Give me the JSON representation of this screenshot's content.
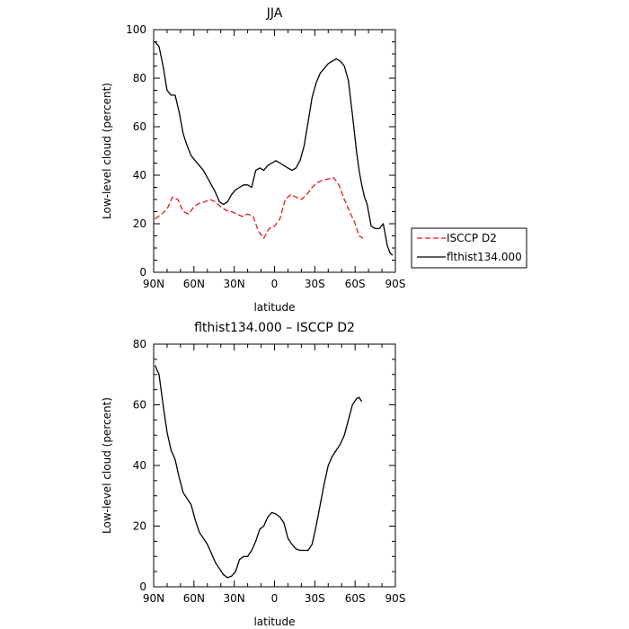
{
  "chart_data": [
    {
      "type": "line",
      "title": "JJA",
      "xlabel": "latitude",
      "ylabel": "Low-level cloud (percent)",
      "xlim": [
        90,
        -90
      ],
      "ylim": [
        0,
        100
      ],
      "x_ticks": [
        90,
        60,
        30,
        0,
        -30,
        -60,
        -90
      ],
      "x_tick_labels": [
        "90N",
        "60N",
        "30N",
        "0",
        "30S",
        "60S",
        "90S"
      ],
      "y_ticks": [
        0,
        20,
        40,
        60,
        80,
        100
      ],
      "y_tick_labels": [
        "0",
        "20",
        "40",
        "60",
        "80",
        "100"
      ],
      "grid": false,
      "legend_position": "right, outside plot",
      "series": [
        {
          "name": "ISCCP D2",
          "color": "#e8141b",
          "dash": "dashed",
          "x": [
            89,
            84,
            80,
            76,
            72,
            68,
            64,
            60,
            56,
            52,
            48,
            44,
            40,
            36,
            32,
            28,
            24,
            20,
            16,
            12,
            8,
            4,
            0,
            -4,
            -8,
            -12,
            -16,
            -20,
            -24,
            -28,
            -32,
            -36,
            -40,
            -44,
            -48,
            -52,
            -56,
            -60,
            -63,
            -66
          ],
          "values": [
            22,
            24,
            26,
            31,
            30,
            25,
            24,
            27,
            28.5,
            29,
            30,
            29,
            27,
            25.5,
            25,
            24,
            23,
            24,
            23,
            17,
            14,
            18,
            19,
            22,
            30,
            32,
            31,
            30,
            32,
            35,
            37,
            38,
            38.5,
            39,
            36,
            30,
            25,
            20,
            15,
            14
          ]
        },
        {
          "name": "flthist134.000",
          "color": "#000000",
          "dash": "solid",
          "x": [
            89,
            86,
            83,
            80,
            77,
            74,
            71,
            68,
            65,
            62,
            59,
            56,
            53,
            50,
            47,
            44,
            41,
            38,
            35,
            32,
            29,
            26,
            23,
            20,
            17,
            14,
            11,
            8,
            5,
            2,
            -1,
            -4,
            -7,
            -10,
            -13,
            -16,
            -19,
            -22,
            -25,
            -28,
            -31,
            -34,
            -37,
            -40,
            -43,
            -46,
            -49,
            -52,
            -55,
            -58,
            -61,
            -63,
            -65,
            -67,
            -69,
            -72,
            -75,
            -78,
            -81,
            -84,
            -86,
            -88
          ],
          "values": [
            95,
            93,
            85,
            75,
            73,
            73,
            66,
            57,
            52,
            48,
            46,
            44,
            42,
            39,
            36,
            33,
            29,
            28,
            29,
            32,
            34,
            35,
            36,
            36,
            35,
            42,
            43,
            42,
            44,
            45,
            46,
            45,
            44,
            43,
            42,
            43,
            46,
            52,
            62,
            72,
            78,
            82,
            84,
            86,
            87,
            88,
            87,
            85,
            79,
            65,
            50,
            42,
            36,
            31,
            28,
            19,
            18,
            18,
            20,
            11,
            8,
            7
          ]
        }
      ]
    },
    {
      "type": "line",
      "title": "flthist134.000 – ISCCP D2",
      "xlabel": "latitude",
      "ylabel": "Low-level cloud (percent)",
      "xlim": [
        90,
        -90
      ],
      "ylim": [
        0,
        80
      ],
      "x_ticks": [
        90,
        60,
        30,
        0,
        -30,
        -60,
        -90
      ],
      "x_tick_labels": [
        "90N",
        "60N",
        "30N",
        "0",
        "30S",
        "60S",
        "90S"
      ],
      "y_ticks": [
        0,
        20,
        40,
        60,
        80
      ],
      "y_tick_labels": [
        "0",
        "20",
        "40",
        "60",
        "80"
      ],
      "grid": false,
      "series": [
        {
          "color": "#000000",
          "dash": "solid",
          "x": [
            89,
            86,
            83,
            80,
            77,
            74,
            71,
            68,
            65,
            62,
            59,
            56,
            53,
            50,
            47,
            44,
            41,
            38,
            35,
            32,
            29,
            26,
            23,
            20,
            17,
            14,
            11,
            8,
            5,
            2,
            -1,
            -4,
            -7,
            -10,
            -13,
            -16,
            -19,
            -22,
            -25,
            -28,
            -31,
            -34,
            -37,
            -40,
            -43,
            -46,
            -49,
            -52,
            -55,
            -58,
            -61,
            -63,
            -65
          ],
          "values": [
            73,
            70,
            60,
            51,
            45,
            42,
            36,
            31,
            29,
            27,
            22,
            18,
            16,
            14,
            11,
            8,
            6,
            4,
            3,
            3.5,
            5,
            9,
            10,
            10,
            12,
            15,
            19,
            20,
            23,
            24.5,
            24,
            23,
            21,
            16,
            14,
            12.5,
            12,
            12,
            12,
            14,
            20,
            27,
            34,
            40,
            43,
            45,
            47,
            50,
            55,
            60,
            62,
            62.5,
            61
          ]
        }
      ]
    }
  ]
}
